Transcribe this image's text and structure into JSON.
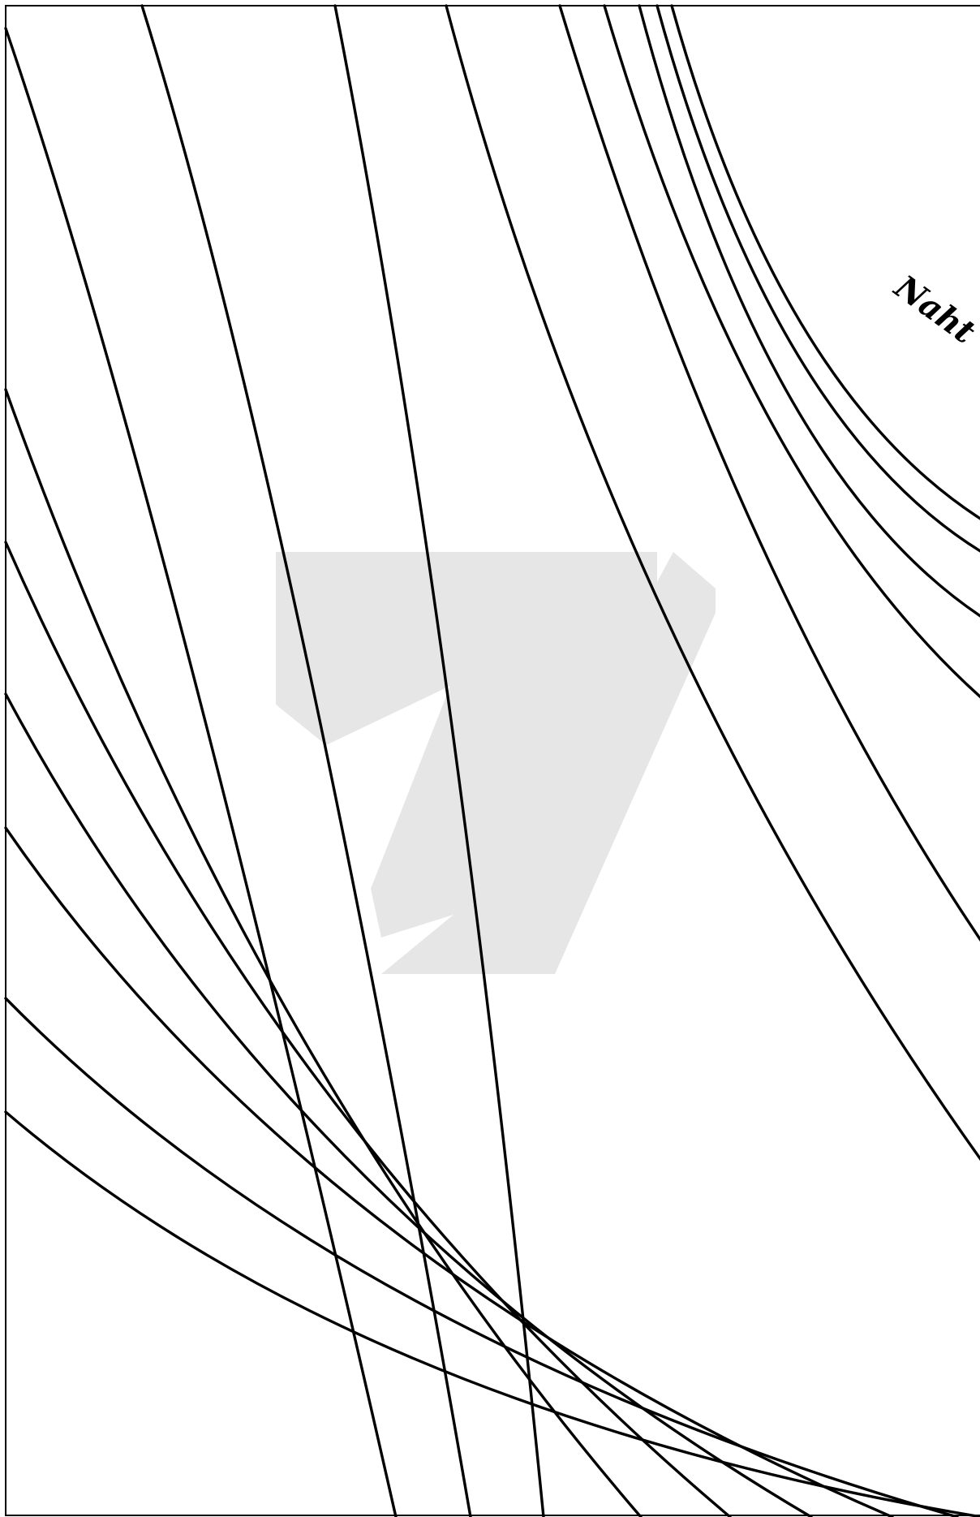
{
  "pattern": {
    "seam_label": "Naht",
    "colors": {
      "background": "#ffffff",
      "lines": "#000000",
      "watermark": "#e6e6e6"
    },
    "watermark_icon": "seven-logo-watermark"
  }
}
